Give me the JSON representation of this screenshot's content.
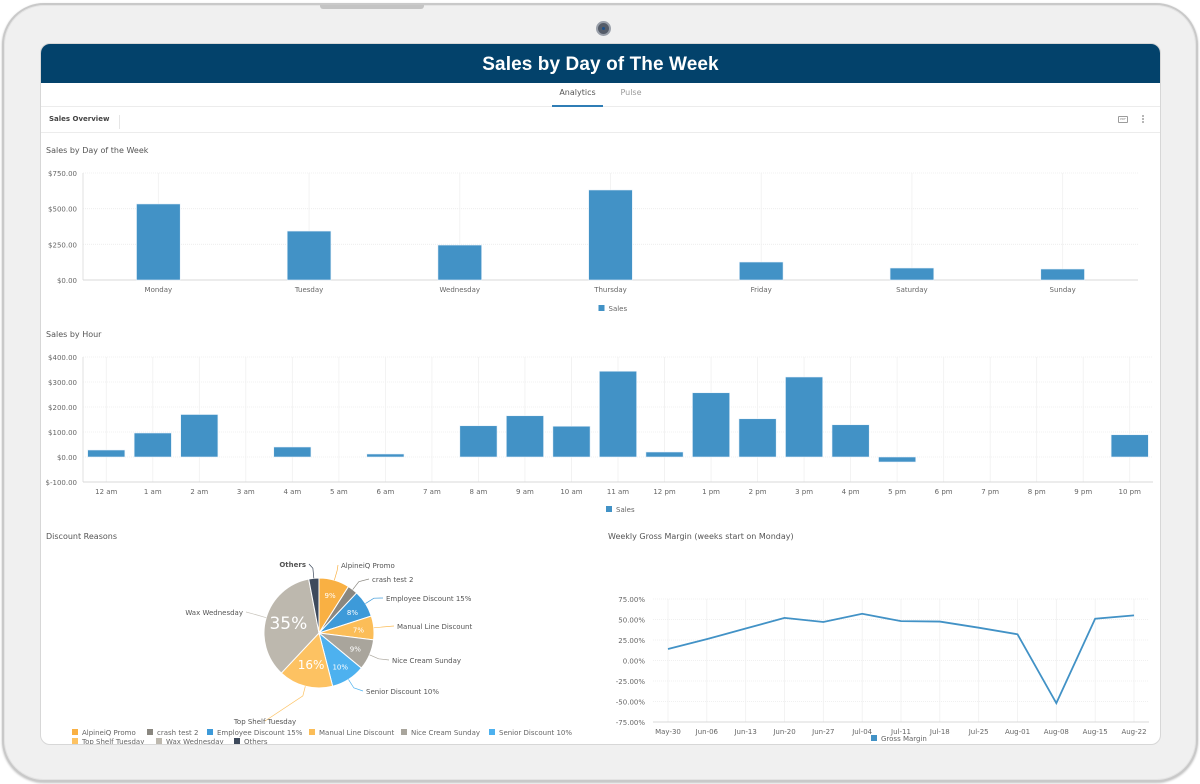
{
  "header": {
    "title": "Sales by Day of The Week"
  },
  "tabs": [
    {
      "label": "Analytics",
      "active": true
    },
    {
      "label": "Pulse",
      "active": false
    }
  ],
  "toolbar": {
    "section_label": "Sales Overview",
    "pdf_icon": "pdf-export-icon",
    "more_icon": "more-vertical-icon"
  },
  "colors": {
    "header": "#03426b",
    "bar": "#4292c6",
    "tab_active": "#2f7db5"
  },
  "chart_data": [
    {
      "id": "sales-by-day",
      "type": "bar",
      "title": "Sales by Day of the Week",
      "categories": [
        "Monday",
        "Tuesday",
        "Wednesday",
        "Thursday",
        "Friday",
        "Saturday",
        "Sunday"
      ],
      "series": [
        {
          "name": "Sales",
          "values": [
            533,
            343,
            245,
            631,
            126,
            84,
            77
          ],
          "color": "#4292c6"
        }
      ],
      "yticks": [
        "$0.00",
        "$250.00",
        "$500.00",
        "$750.00"
      ],
      "ytick_values": [
        0,
        250,
        500,
        750
      ],
      "ylim": [
        0,
        750
      ],
      "xlabel": "",
      "ylabel": "",
      "grid": true,
      "legend": "bottom-center"
    },
    {
      "id": "sales-by-hour",
      "type": "bar",
      "title": "Sales by Hour",
      "categories": [
        "12 am",
        "1 am",
        "2 am",
        "3 am",
        "4 am",
        "5 am",
        "6 am",
        "7 am",
        "8 am",
        "9 am",
        "10 am",
        "11 am",
        "12 pm",
        "1 pm",
        "2 pm",
        "3 pm",
        "4 pm",
        "5 pm",
        "6 pm",
        "7 pm",
        "8 pm",
        "9 pm",
        "10 pm"
      ],
      "series": [
        {
          "name": "Sales",
          "values": [
            28,
            96,
            170,
            0,
            40,
            0,
            12,
            0,
            125,
            165,
            123,
            343,
            20,
            257,
            153,
            320,
            129,
            -20,
            0,
            0,
            0,
            0,
            89
          ],
          "color": "#4292c6"
        }
      ],
      "yticks": [
        "$-100.00",
        "$0.00",
        "$100.00",
        "$200.00",
        "$300.00",
        "$400.00"
      ],
      "ytick_values": [
        -100,
        0,
        100,
        200,
        300,
        400
      ],
      "ylim": [
        -100,
        400
      ],
      "xlabel": "",
      "ylabel": "",
      "grid": true,
      "legend": "bottom-center"
    },
    {
      "id": "discount-reasons",
      "type": "pie",
      "title": "Discount Reasons",
      "slices": [
        {
          "label": "AlpineiQ Promo",
          "value": 9,
          "display": "9%",
          "color": "#f9b043"
        },
        {
          "label": "crash test 2",
          "value": 3,
          "display": "",
          "color": "#8a8780"
        },
        {
          "label": "Employee Discount 15%",
          "value": 8,
          "display": "8%",
          "color": "#3d9ad9"
        },
        {
          "label": "Manual Line Discount",
          "value": 7,
          "display": "7%",
          "color": "#fbbd58"
        },
        {
          "label": "Nice Cream Sunday",
          "value": 9,
          "display": "9%",
          "color": "#a9a59c"
        },
        {
          "label": "Senior Discount 10%",
          "value": 10,
          "display": "10%",
          "color": "#4db1ef"
        },
        {
          "label": "Top Shelf Tuesday",
          "value": 16,
          "display": "16%",
          "color": "#fdc262"
        },
        {
          "label": "Wax Wednesday",
          "value": 35,
          "display": "35%",
          "color": "#bdb8ae"
        },
        {
          "label": "Others",
          "value": 3,
          "display": "",
          "color": "#3e4a5c"
        }
      ],
      "legend": "bottom-left"
    },
    {
      "id": "weekly-gross-margin",
      "type": "line",
      "title": "Weekly Gross Margin (weeks start on Monday)",
      "x": [
        "May-30",
        "Jun-06",
        "Jun-13",
        "Jun-20",
        "Jun-27",
        "Jul-04",
        "Jul-11",
        "Jul-18",
        "Jul-25",
        "Aug-01",
        "Aug-08",
        "Aug-15",
        "Aug-22"
      ],
      "series": [
        {
          "name": "Gross Margin",
          "values": [
            14,
            26,
            39,
            52,
            47,
            57,
            48,
            47.5,
            40,
            32,
            -52,
            51,
            55
          ],
          "color": "#4292c6"
        }
      ],
      "yticks": [
        "-75.00%",
        "-50.00%",
        "-25.00%",
        "0.00%",
        "25.00%",
        "50.00%",
        "75.00%"
      ],
      "ytick_values": [
        -75,
        -50,
        -25,
        0,
        25,
        50,
        75
      ],
      "ylim": [
        -75,
        75
      ],
      "xlabel": "",
      "ylabel": "",
      "grid": true,
      "legend": "bottom-center"
    }
  ]
}
